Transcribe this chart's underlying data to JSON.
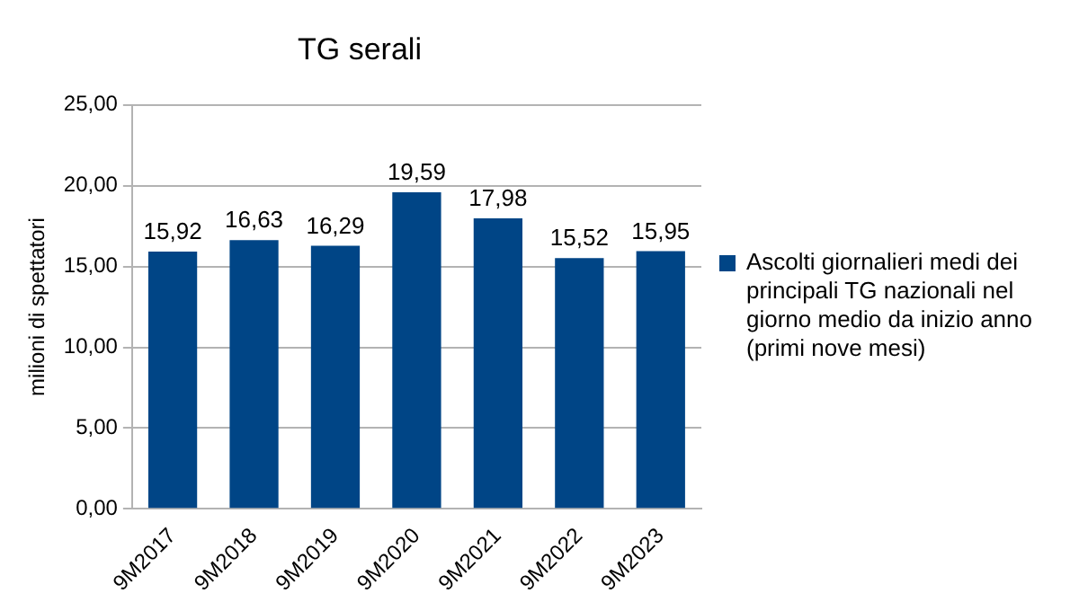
{
  "chart_data": {
    "type": "bar",
    "title": "TG serali",
    "ylabel": "milioni di spettatori",
    "categories": [
      "9M2017",
      "9M2018",
      "9M2019",
      "9M2020",
      "9M2021",
      "9M2022",
      "9M2023"
    ],
    "series": [
      {
        "name": "Ascolti giornalieri medi dei principali TG nazionali nel giorno medio da inizio anno (primi nove mesi)",
        "color": "#004586",
        "values": [
          15.92,
          16.63,
          16.29,
          19.59,
          17.98,
          15.52,
          15.95
        ],
        "value_labels": [
          "15,92",
          "16,63",
          "16,29",
          "19,59",
          "17,98",
          "15,52",
          "15,95"
        ]
      }
    ],
    "ylim": [
      0,
      25
    ],
    "yticks": [
      {
        "value": 0,
        "label": "0,00"
      },
      {
        "value": 5,
        "label": "5,00"
      },
      {
        "value": 10,
        "label": "10,00"
      },
      {
        "value": 15,
        "label": "15,00"
      },
      {
        "value": 20,
        "label": "20,00"
      },
      {
        "value": 25,
        "label": "25,00"
      }
    ],
    "grid": "y",
    "legend": "right"
  }
}
